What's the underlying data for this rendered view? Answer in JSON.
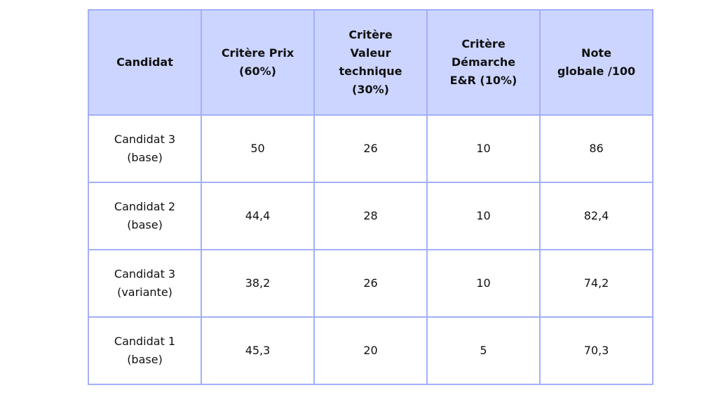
{
  "colors": {
    "header_bg": "#ccd5ff",
    "border": "#a3aff7"
  },
  "chart_data": {
    "type": "table",
    "headers": [
      "Candidat",
      "Critère Prix\n(60%)",
      "Critère\nValeur\ntechnique\n(30%)",
      "Critère\nDémarche\nE&R (10%)",
      "Note\nglobale /100"
    ],
    "rows": [
      [
        "Candidat 3\n(base)",
        "50",
        "26",
        "10",
        "86"
      ],
      [
        "Candidat 2\n(base)",
        "44,4",
        "28",
        "10",
        "82,4"
      ],
      [
        "Candidat 3\n(variante)",
        "38,2",
        "26",
        "10",
        "74,2"
      ],
      [
        "Candidat 1\n(base)",
        "45,3",
        "20",
        "5",
        "70,3"
      ]
    ]
  }
}
